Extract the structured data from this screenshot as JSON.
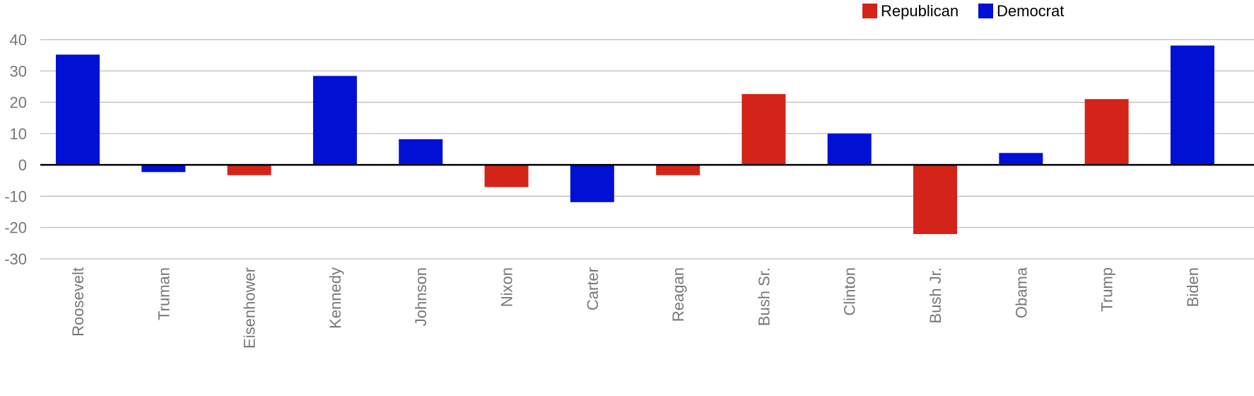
{
  "chart_data": {
    "type": "bar",
    "title": "",
    "xlabel": "",
    "ylabel": "",
    "ylim": [
      -30,
      40
    ],
    "yticks": [
      40,
      30,
      20,
      10,
      0,
      -10,
      -20,
      -30
    ],
    "grid": true,
    "legend_position": "top-right",
    "legend": [
      {
        "name": "Republican",
        "color": "#d42319"
      },
      {
        "name": "Democrat",
        "color": "#0010d4"
      }
    ],
    "categories": [
      "Roosevelt",
      "Truman",
      "Eisenhower",
      "Kennedy",
      "Johnson",
      "Nixon",
      "Carter",
      "Reagan",
      "Bush Sr.",
      "Clinton",
      "Bush Jr.",
      "Obama",
      "Trump",
      "Biden"
    ],
    "values": [
      35.2,
      -2.3,
      -3.3,
      28.4,
      8.2,
      -7.1,
      -11.9,
      -3.3,
      22.6,
      10.0,
      -22.1,
      3.8,
      21.0,
      38.1
    ],
    "parties": [
      "Democrat",
      "Democrat",
      "Republican",
      "Democrat",
      "Democrat",
      "Republican",
      "Democrat",
      "Republican",
      "Republican",
      "Democrat",
      "Republican",
      "Democrat",
      "Republican",
      "Democrat"
    ]
  }
}
